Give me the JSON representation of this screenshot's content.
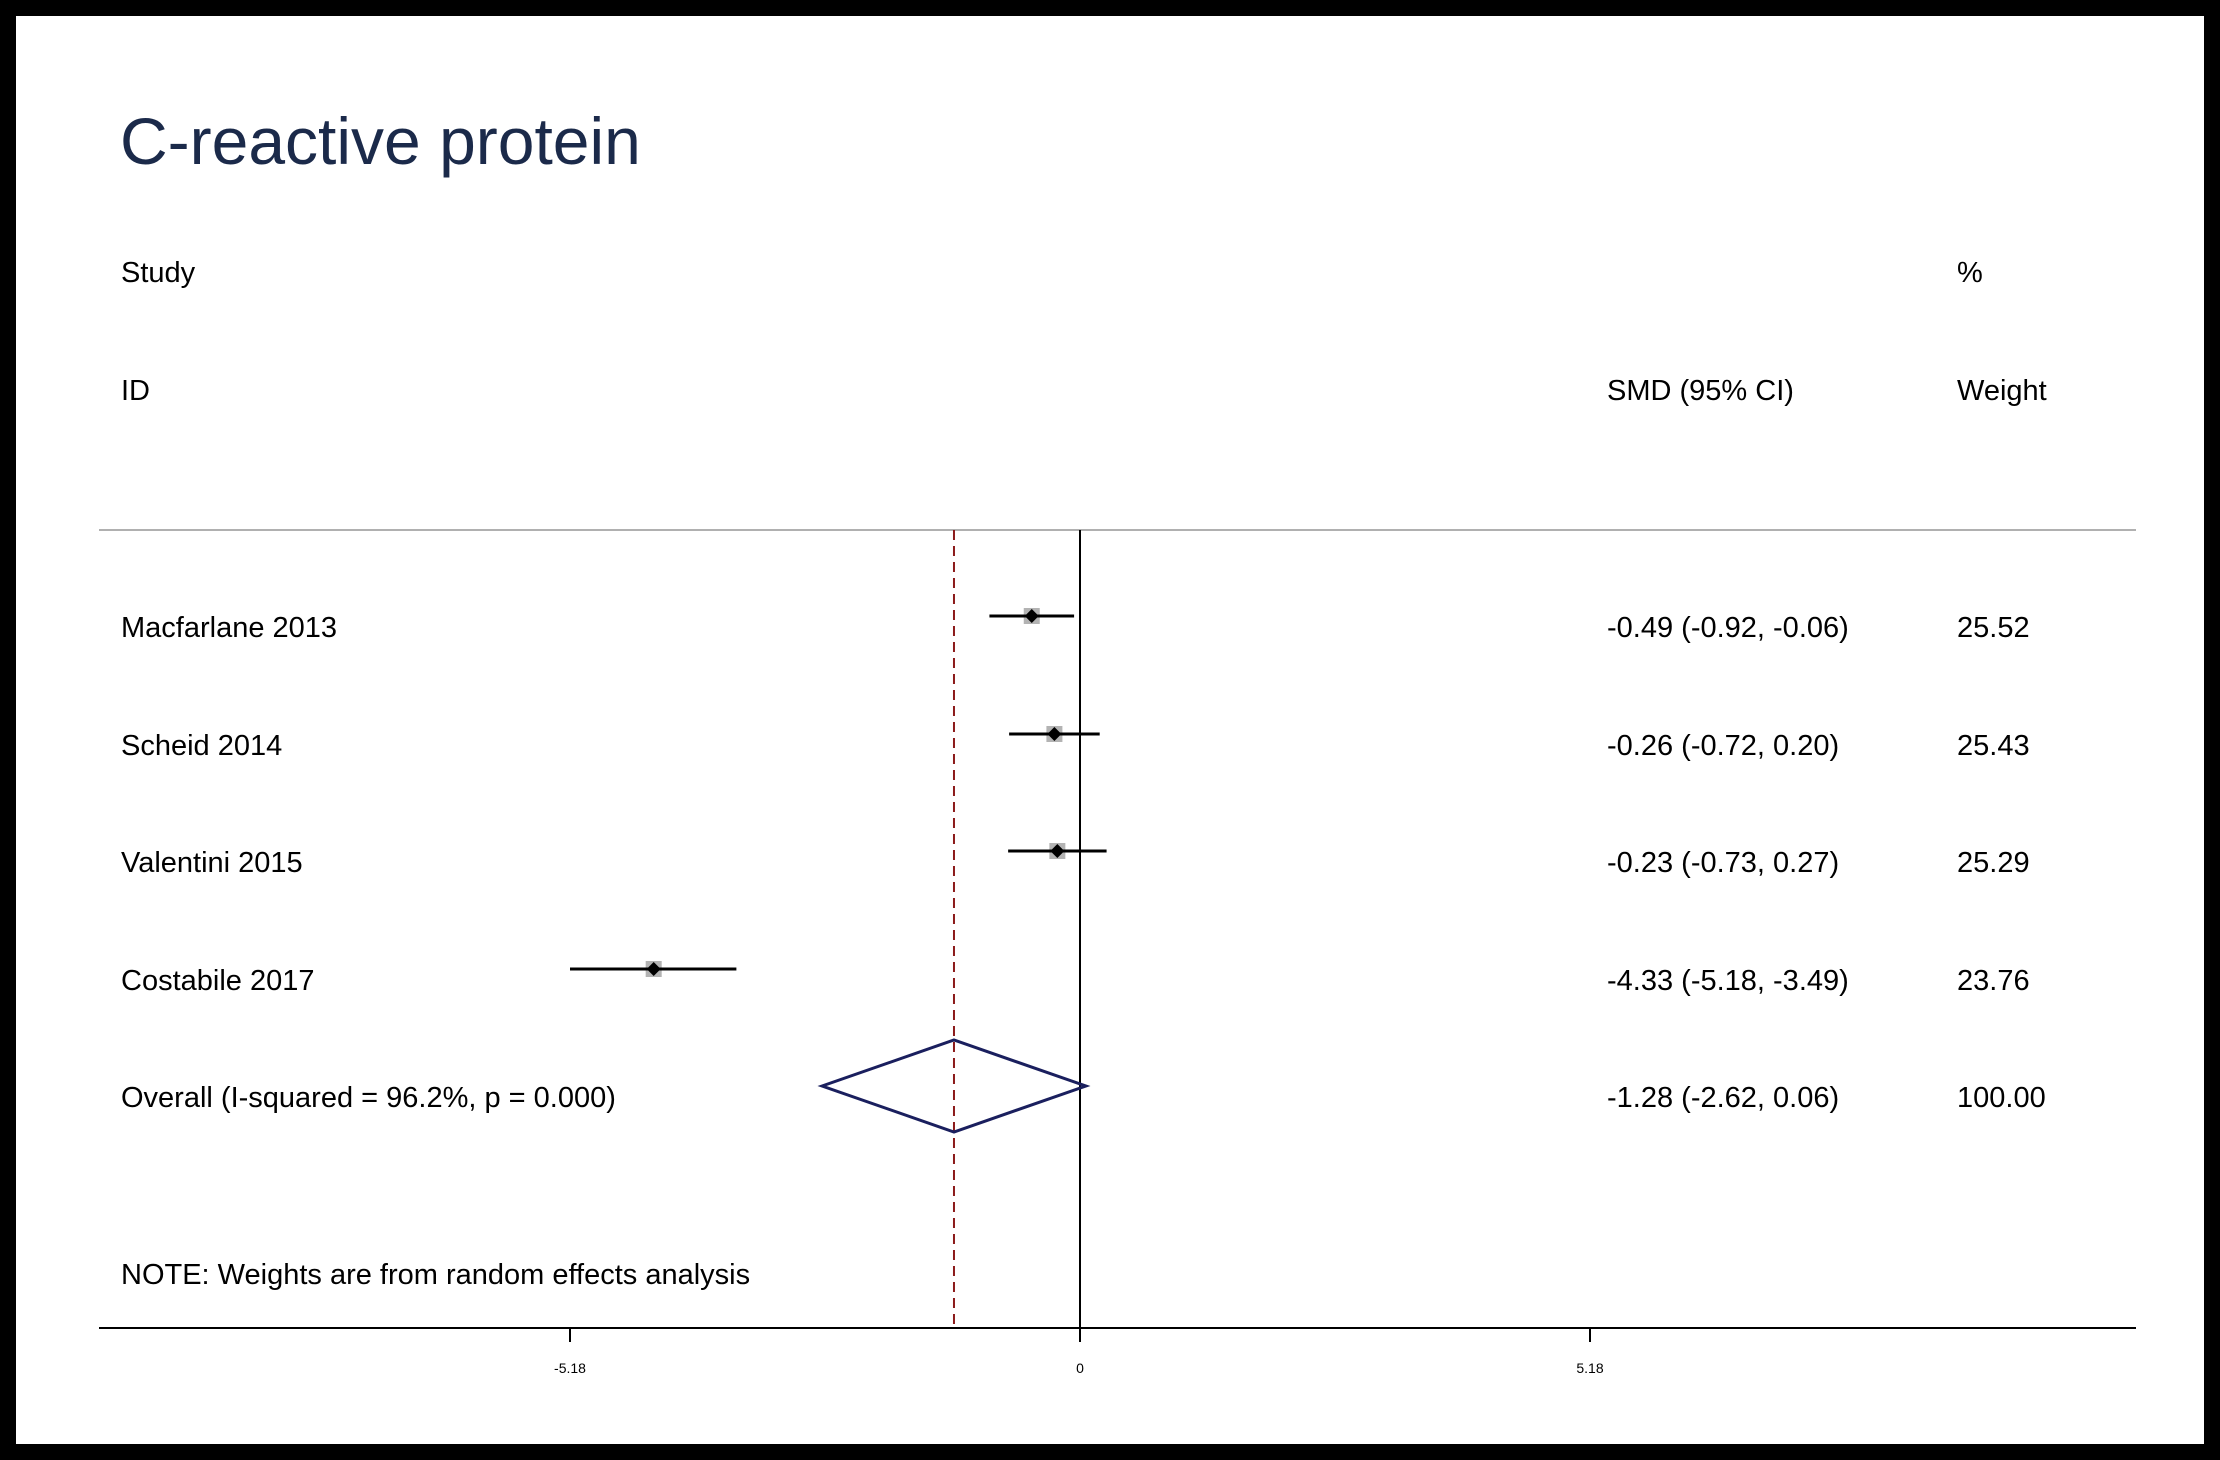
{
  "chart_data": {
    "type": "forest",
    "title": "C-reactive protein",
    "header": {
      "study_line1": "Study",
      "study_line2": "ID",
      "effect_label": "SMD (95% CI)",
      "weight_line1": "%",
      "weight_line2": "Weight"
    },
    "studies": [
      {
        "label": "Macfarlane 2013",
        "est": -0.49,
        "lo": -0.92,
        "hi": -0.06,
        "ci_text": "-0.49 (-0.92, -0.06)",
        "weight": "25.52"
      },
      {
        "label": "Scheid 2014",
        "est": -0.26,
        "lo": -0.72,
        "hi": 0.2,
        "ci_text": "-0.26 (-0.72, 0.20)",
        "weight": "25.43"
      },
      {
        "label": "Valentini 2015",
        "est": -0.23,
        "lo": -0.73,
        "hi": 0.27,
        "ci_text": "-0.23 (-0.73, 0.27)",
        "weight": "25.29"
      },
      {
        "label": "Costabile 2017",
        "est": -4.33,
        "lo": -5.18,
        "hi": -3.49,
        "ci_text": "-4.33 (-5.18, -3.49)",
        "weight": "23.76"
      }
    ],
    "overall": {
      "label": "Overall  (I-squared = 96.2%, p = 0.000)",
      "est": -1.28,
      "lo": -2.62,
      "hi": 0.06,
      "ci_text": "-1.28 (-2.62, 0.06)",
      "weight": "100.00"
    },
    "note": "NOTE: Weights are from random effects analysis",
    "x_ticks": [
      {
        "value": -5.18,
        "label": "-5.18"
      },
      {
        "value": 0,
        "label": "0"
      },
      {
        "value": 5.18,
        "label": "5.18"
      }
    ],
    "null_line": 0,
    "overall_line": -1.28,
    "colors": {
      "title": "#1b2a4a",
      "diamond": "#1a1f5e",
      "overall_line": "#8b1a1a",
      "ci_line": "#000000",
      "weight_box": "#b3b3b3"
    }
  }
}
